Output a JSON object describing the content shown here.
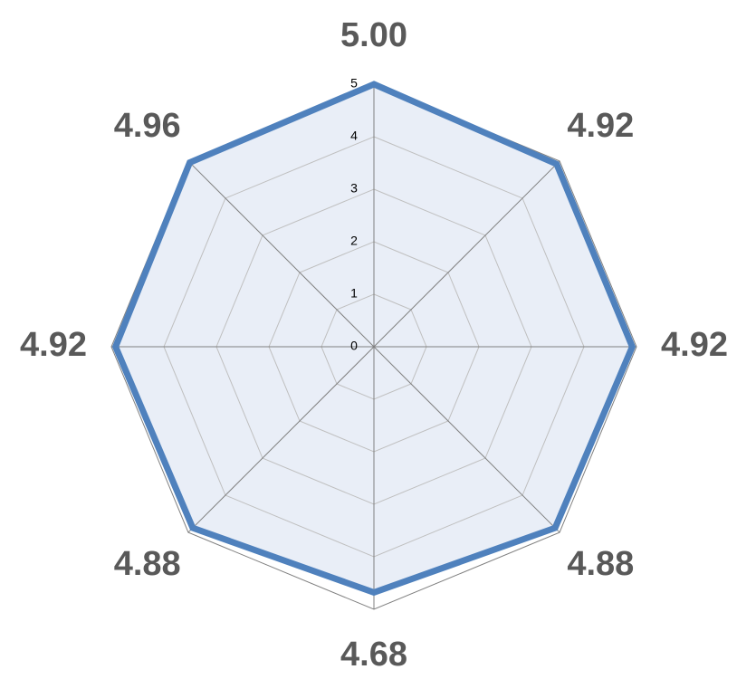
{
  "chart_data": {
    "type": "radar",
    "values": [
      5,
      4.92,
      4.92,
      4.88,
      4.68,
      4.88,
      4.92,
      4.96
    ],
    "value_labels": [
      "5.00",
      "4.92",
      "4.92",
      "4.88",
      "4.68",
      "4.88",
      "4.92",
      "4.96"
    ],
    "color": "#4f81bd",
    "fill": "#e9eef7",
    "rlim": [
      0,
      5
    ],
    "rticks": [
      0,
      1,
      2,
      3,
      4,
      5
    ],
    "grid": true
  }
}
